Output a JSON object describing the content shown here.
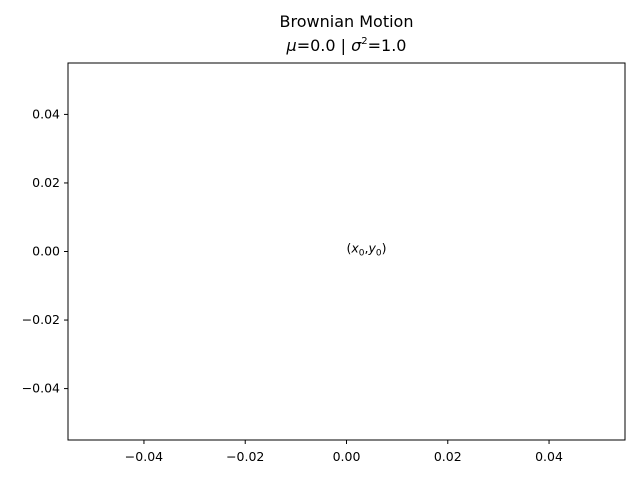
{
  "chart_data": {
    "type": "line",
    "title": "Brownian Motion",
    "subtitle": {
      "mu_symbol": "μ",
      "mu_value": "=0.0 | ",
      "sigma_symbol": "σ",
      "sigma_exponent": "2",
      "sigma_value": "=1.0"
    },
    "series": [
      {
        "x": [
          0.0
        ],
        "y": [
          0.0
        ]
      }
    ],
    "annotations": [
      {
        "text": "(x0,y0)",
        "x": 0.0,
        "y": 0.0
      }
    ],
    "xlim": [
      -0.055,
      0.055
    ],
    "ylim": [
      -0.055,
      0.055
    ],
    "x_ticks": [
      -0.04,
      -0.02,
      0.0,
      0.02,
      0.04
    ],
    "y_ticks": [
      0.04,
      0.02,
      0.0,
      -0.02,
      -0.04
    ],
    "x_tick_labels": [
      "−0.04",
      "−0.02",
      "0.00",
      "0.02",
      "0.04"
    ],
    "y_tick_labels": [
      "0.04",
      "0.02",
      "0.00",
      "−0.02",
      "−0.04"
    ],
    "grid": false,
    "legend": false,
    "colors": {
      "axes": "#000000",
      "background": "#ffffff",
      "text": "#000000"
    }
  }
}
